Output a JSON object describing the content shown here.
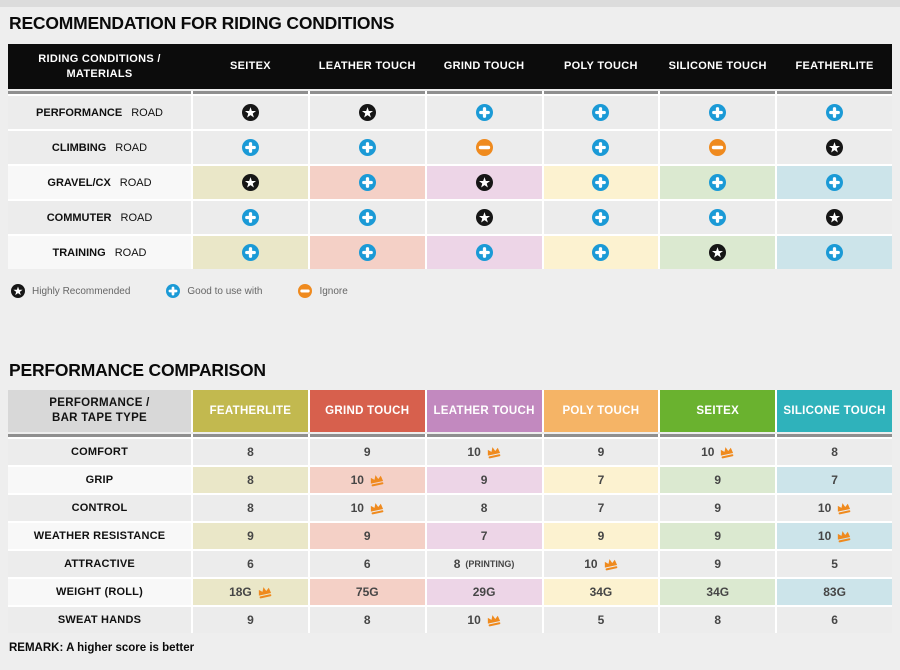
{
  "colors": {
    "page_bg": "#eeeeee",
    "row_gray": "#ececec",
    "row_label_light": "#f8f8f8",
    "header_black": "#0c0c0c",
    "divider_gray": "#8f8f8f",
    "accent_blue": "#1b9ad6",
    "accent_orange": "#ef8a1e",
    "star_black": "#161616",
    "corner_gray": "#d8d8d8",
    "column_tints": [
      "#eae7c8",
      "#f4d0c6",
      "#edd5e7",
      "#fcf2d0",
      "#dbe9d0",
      "#cce4ea"
    ]
  },
  "chart_data": [
    {
      "type": "table",
      "title": "RECOMMENDATION FOR RIDING CONDITIONS",
      "corner_header": "RIDING CONDITIONS / MATERIALS",
      "columns": [
        "SEITEX",
        "LEATHER TOUCH",
        "GRIND TOUCH",
        "POLY TOUCH",
        "SILICONE TOUCH",
        "FEATHERLITE"
      ],
      "mark_meanings": {
        "star": "Highly Recommended",
        "plus": "Good to use with",
        "minus": "Ignore"
      },
      "rows": [
        {
          "label_bold": "PERFORMANCE",
          "label_rest": "ROAD",
          "tinted": false,
          "marks": [
            "star",
            "star",
            "plus",
            "plus",
            "plus",
            "plus"
          ]
        },
        {
          "label_bold": "CLIMBING",
          "label_rest": "ROAD",
          "tinted": false,
          "marks": [
            "plus",
            "plus",
            "minus",
            "plus",
            "minus",
            "star"
          ]
        },
        {
          "label_bold": "GRAVEL/CX",
          "label_rest": "ROAD",
          "tinted": true,
          "marks": [
            "star",
            "plus",
            "star",
            "plus",
            "plus",
            "plus"
          ]
        },
        {
          "label_bold": "COMMUTER",
          "label_rest": "ROAD",
          "tinted": false,
          "marks": [
            "plus",
            "plus",
            "star",
            "plus",
            "plus",
            "star"
          ]
        },
        {
          "label_bold": "TRAINING",
          "label_rest": "ROAD",
          "tinted": true,
          "marks": [
            "plus",
            "plus",
            "plus",
            "plus",
            "star",
            "plus"
          ]
        }
      ],
      "legend": [
        {
          "icon": "star",
          "label": "Highly Recommended"
        },
        {
          "icon": "plus",
          "label": "Good to use with"
        },
        {
          "icon": "minus",
          "label": "Ignore"
        }
      ]
    },
    {
      "type": "table",
      "title": "PERFORMANCE COMPARISON",
      "corner_header": "PERFORMANCE / BAR TAPE TYPE",
      "columns": [
        {
          "label": "FEATHERLITE",
          "color": "#c2b94f"
        },
        {
          "label": "GRIND TOUCH",
          "color": "#d7604d"
        },
        {
          "label": "LEATHER TOUCH",
          "color": "#c289bf"
        },
        {
          "label": "POLY TOUCH",
          "color": "#f5b466"
        },
        {
          "label": "SEITEX",
          "color": "#6ab22f"
        },
        {
          "label": "SILICONE TOUCH",
          "color": "#2fb2bb"
        }
      ],
      "rows": [
        {
          "label": "COMFORT",
          "tinted": false,
          "cells": [
            {
              "value": "8"
            },
            {
              "value": "9"
            },
            {
              "value": "10",
              "crown": true
            },
            {
              "value": "9"
            },
            {
              "value": "10",
              "crown": true
            },
            {
              "value": "8"
            }
          ]
        },
        {
          "label": "GRIP",
          "tinted": true,
          "cells": [
            {
              "value": "8"
            },
            {
              "value": "10",
              "crown": true
            },
            {
              "value": "9"
            },
            {
              "value": "7"
            },
            {
              "value": "9"
            },
            {
              "value": "7"
            }
          ]
        },
        {
          "label": "CONTROL",
          "tinted": false,
          "cells": [
            {
              "value": "8"
            },
            {
              "value": "10",
              "crown": true
            },
            {
              "value": "8"
            },
            {
              "value": "7"
            },
            {
              "value": "9"
            },
            {
              "value": "10",
              "crown": true
            }
          ]
        },
        {
          "label": "WEATHER RESISTANCE",
          "tinted": true,
          "cells": [
            {
              "value": "9"
            },
            {
              "value": "9"
            },
            {
              "value": "7"
            },
            {
              "value": "9"
            },
            {
              "value": "9"
            },
            {
              "value": "10",
              "crown": true
            }
          ]
        },
        {
          "label": "ATTRACTIVE",
          "tinted": false,
          "cells": [
            {
              "value": "6"
            },
            {
              "value": "6"
            },
            {
              "value": "8",
              "note": "(PRINTING)"
            },
            {
              "value": "10",
              "crown": true
            },
            {
              "value": "9"
            },
            {
              "value": "5"
            }
          ]
        },
        {
          "label": "WEIGHT (ROLL)",
          "tinted": true,
          "cells": [
            {
              "value": "18G",
              "crown": true
            },
            {
              "value": "75G"
            },
            {
              "value": "29G"
            },
            {
              "value": "34G"
            },
            {
              "value": "34G"
            },
            {
              "value": "83G"
            }
          ]
        },
        {
          "label": "SWEAT HANDS",
          "tinted": false,
          "cells": [
            {
              "value": "9"
            },
            {
              "value": "8"
            },
            {
              "value": "10",
              "crown": true
            },
            {
              "value": "5"
            },
            {
              "value": "8"
            },
            {
              "value": "6"
            }
          ]
        }
      ],
      "remark": "REMARK: A higher score is better"
    }
  ]
}
